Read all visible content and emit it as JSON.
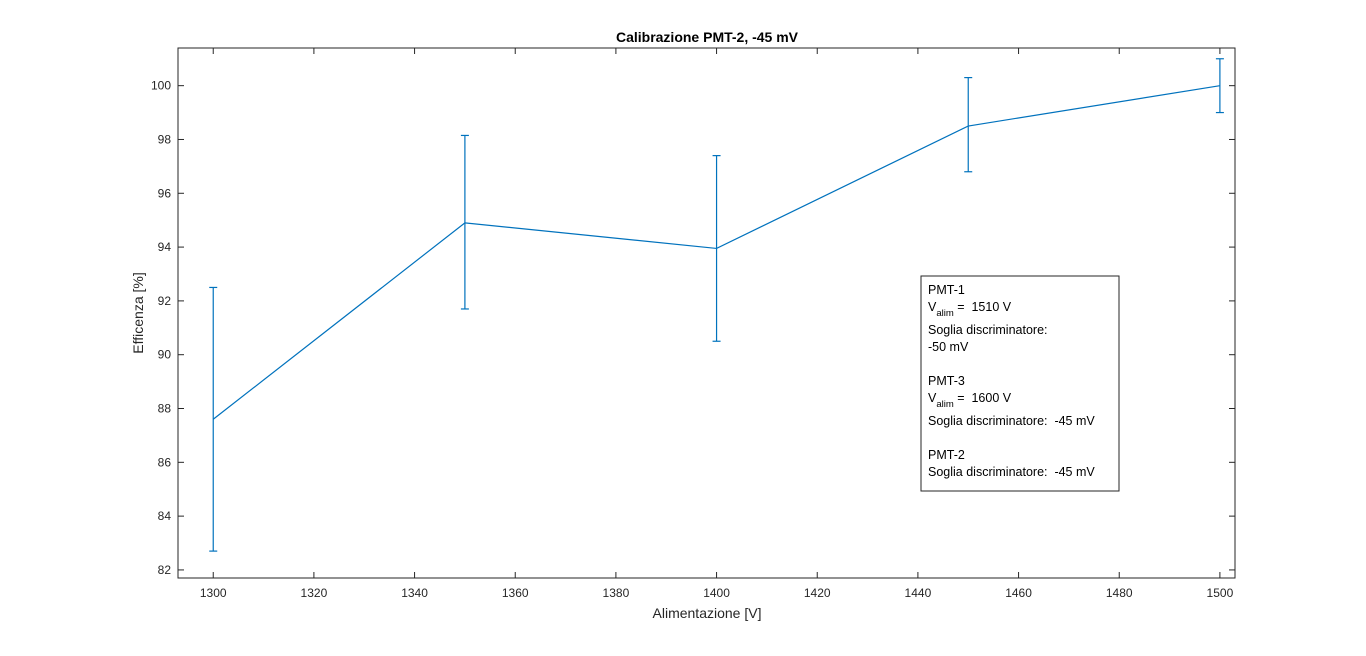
{
  "chart_data": {
    "type": "line",
    "title": "Calibrazione PMT-2, -45 mV",
    "xlabel": "Alimentazione [V]",
    "ylabel": "Efficenza [%]",
    "xlim": [
      1293,
      1503
    ],
    "ylim": [
      81.7,
      101.4
    ],
    "xticks": [
      1300,
      1320,
      1340,
      1360,
      1380,
      1400,
      1420,
      1440,
      1460,
      1480,
      1500
    ],
    "yticks": [
      82,
      84,
      86,
      88,
      90,
      92,
      94,
      96,
      98,
      100
    ],
    "grid": false,
    "series": [
      {
        "color": "#0072BD",
        "points": [
          {
            "x": 1300,
            "y": 87.6,
            "err_low": 82.7,
            "err_high": 92.5
          },
          {
            "x": 1350,
            "y": 94.9,
            "err_low": 91.7,
            "err_high": 98.15
          },
          {
            "x": 1400,
            "y": 93.95,
            "err_low": 90.5,
            "err_high": 97.4
          },
          {
            "x": 1450,
            "y": 98.5,
            "err_low": 96.8,
            "err_high": 100.3
          },
          {
            "x": 1500,
            "y": 100.0,
            "err_low": 99.0,
            "err_high": 101.0
          }
        ]
      }
    ],
    "annotation": {
      "pmt1_name": "PMT-1",
      "pmt1_v_main": "V",
      "pmt1_v_sub": "alim",
      "pmt1_v_value": " =  1510 V",
      "pmt1_soglia_label": "Soglia discriminatore:",
      "pmt1_soglia_value": "-50 mV",
      "pmt3_name": "PMT-3",
      "pmt3_v_main": "V",
      "pmt3_v_sub": "alim",
      "pmt3_v_value": " =  1600 V",
      "pmt3_soglia": "Soglia discriminatore:  -45 mV",
      "pmt2_name": "PMT-2",
      "pmt2_soglia": "Soglia discriminatore:  -45 mV"
    }
  }
}
